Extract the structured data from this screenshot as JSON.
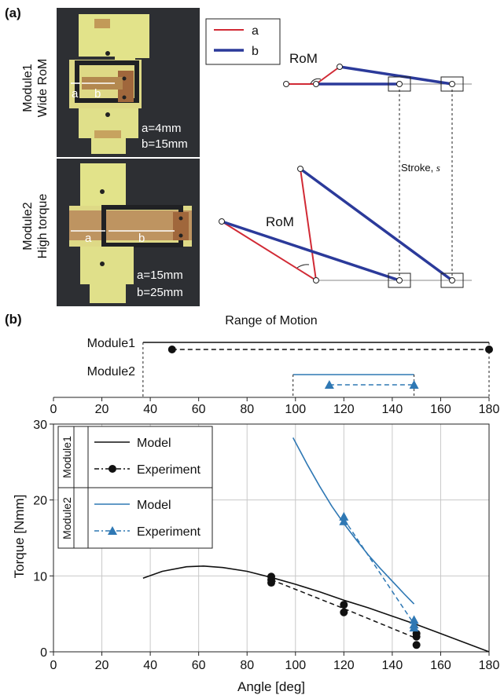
{
  "panel_a": {
    "label": "(a)",
    "module1": {
      "name_line1": "Module1",
      "name_line2": "Wide RoM",
      "dim_a": "a=4mm",
      "dim_b": "b=15mm",
      "a_mark": "a",
      "b_mark": "b"
    },
    "module2": {
      "name_line1": "Module2",
      "name_line2": "High torque",
      "dim_a": "a=15mm",
      "dim_b": "b=25mm",
      "a_mark": "a",
      "b_mark": "b"
    },
    "legend": [
      {
        "name": "a",
        "color": "#d12a35"
      },
      {
        "name": "b",
        "color": "#2b3a9a"
      }
    ],
    "rom_label": "RoM",
    "stroke_label_prefix": "Stroke, ",
    "stroke_label_var": "s"
  },
  "panel_b": {
    "label": "(b)",
    "rom_title": "Range of Motion",
    "rom_rows": [
      "Module1",
      "Module2"
    ],
    "legend_groups": [
      {
        "group": "Module1",
        "entries": [
          "Model",
          "Experiment"
        ]
      },
      {
        "group": "Module2",
        "entries": [
          "Model",
          "Experiment"
        ]
      }
    ]
  },
  "colors": {
    "module1": "#111111",
    "module2": "#2f78b4",
    "grid": "#c8c8c8"
  },
  "chart_data": {
    "type": "line",
    "xlabel": "Angle [deg]",
    "ylabel": "Torque [Nmm]",
    "xlim": [
      0,
      180
    ],
    "ylim": [
      0,
      30
    ],
    "xticks": [
      0,
      20,
      40,
      60,
      80,
      100,
      120,
      140,
      160,
      180
    ],
    "yticks": [
      0,
      10,
      20,
      30
    ],
    "top_xticks": [
      0,
      20,
      40,
      60,
      80,
      100,
      120,
      140,
      160,
      180
    ],
    "grid": true,
    "range_of_motion": {
      "module1_model": [
        37,
        180
      ],
      "module1_experiment": [
        49,
        180
      ],
      "module2_model": [
        99,
        149
      ],
      "module2_experiment": [
        114,
        149
      ]
    },
    "series": [
      {
        "name": "Model",
        "group": "Module1",
        "style": "solid",
        "x": [
          37,
          45,
          55,
          62,
          70,
          80,
          90,
          100,
          110,
          120,
          130,
          140,
          150,
          160,
          170,
          180
        ],
        "y": [
          9.7,
          10.6,
          11.2,
          11.3,
          11.1,
          10.6,
          9.8,
          8.9,
          7.9,
          6.8,
          5.8,
          4.7,
          3.6,
          2.4,
          1.2,
          0.0
        ]
      },
      {
        "name": "Experiment",
        "group": "Module1",
        "style": "dashed",
        "marker": "circle",
        "x": [
          90,
          90,
          90,
          120,
          120,
          150,
          150,
          150
        ],
        "y": [
          9.9,
          9.5,
          9.1,
          6.2,
          5.2,
          2.4,
          2.0,
          0.9
        ]
      },
      {
        "name": "Model",
        "group": "Module2",
        "style": "solid",
        "x": [
          99,
          105,
          110,
          115,
          120,
          125,
          130,
          135,
          140,
          145,
          149
        ],
        "y": [
          28.2,
          24.6,
          21.8,
          19.2,
          16.9,
          14.8,
          12.8,
          11.0,
          9.3,
          7.6,
          6.3
        ]
      },
      {
        "name": "Experiment",
        "group": "Module2",
        "style": "dashed",
        "marker": "triangle",
        "x": [
          120,
          120,
          149,
          149,
          149
        ],
        "y": [
          17.8,
          17.2,
          4.2,
          3.6,
          3.2
        ]
      }
    ]
  }
}
